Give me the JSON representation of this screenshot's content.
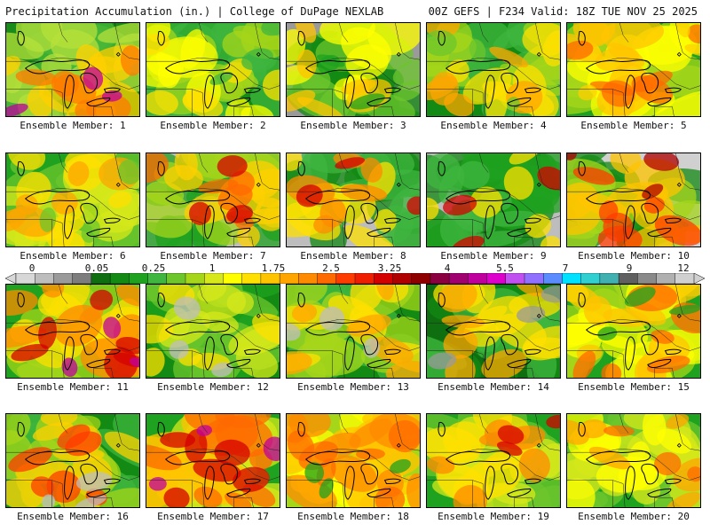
{
  "header": {
    "title": "Precipitation Accumulation (in.) | College of DuPage NEXLAB",
    "valid": "00Z GEFS | F234 Valid: 18Z TUE NOV 25 2025"
  },
  "legend": {
    "labels": [
      "0",
      "0.05",
      "0.25",
      "1",
      "1.75",
      "2.5",
      "3.25",
      "4",
      "5.5",
      "7",
      "9",
      "12"
    ],
    "colors": [
      "#d8d8d8",
      "#bdbdbd",
      "#9a9a9a",
      "#7d7d7d",
      "#0f6e0f",
      "#138a13",
      "#1fa21f",
      "#3fb63f",
      "#6cc62c",
      "#a6d61a",
      "#d6e81a",
      "#ffff00",
      "#ffe000",
      "#ffc400",
      "#ffa500",
      "#ff8a00",
      "#ff6a00",
      "#ff3c00",
      "#f01e00",
      "#d40000",
      "#b00000",
      "#8e0000",
      "#8a0040",
      "#a00070",
      "#c0009e",
      "#dd00cc",
      "#c050f0",
      "#9070ff",
      "#5a8cff",
      "#00e0ff",
      "#30d0d0",
      "#40b0b0",
      "#606060",
      "#8a8a8a",
      "#b0b0b0",
      "#d0d0d0"
    ]
  },
  "panels": [
    {
      "caption": "Ensemble Member: 1",
      "scheme": [
        "#1a8a1a",
        "#4ab83a",
        "#b6e03a",
        "#ffd000",
        "#ff7a00",
        "#c0009e"
      ]
    },
    {
      "caption": "Ensemble Member: 2",
      "scheme": [
        "#138a13",
        "#3fb63f",
        "#a6d61a",
        "#ffff00",
        "#ffe000",
        "#3fb63f"
      ]
    },
    {
      "caption": "Ensemble Member: 3",
      "scheme": [
        "#9a9a9a",
        "#138a13",
        "#6cc62c",
        "#ffff00",
        "#ffc400",
        "#1fa21f"
      ]
    },
    {
      "caption": "Ensemble Member: 4",
      "scheme": [
        "#138a13",
        "#3fb63f",
        "#a6d61a",
        "#ffe000",
        "#ffa500",
        "#6cc62c"
      ]
    },
    {
      "caption": "Ensemble Member: 5",
      "scheme": [
        "#1fa21f",
        "#a6d61a",
        "#ffff00",
        "#ffc400",
        "#ff6a00",
        "#ffd000"
      ]
    },
    {
      "caption": "Ensemble Member: 6",
      "scheme": [
        "#1fa21f",
        "#6cc62c",
        "#d6e81a",
        "#ffe000",
        "#ffa500",
        "#6cc62c"
      ]
    },
    {
      "caption": "Ensemble Member: 7",
      "scheme": [
        "#bdbdbd",
        "#1fa21f",
        "#a6d61a",
        "#ffd000",
        "#ff6a00",
        "#d40000"
      ]
    },
    {
      "caption": "Ensemble Member: 8",
      "scheme": [
        "#bdbdbd",
        "#138a13",
        "#3fb63f",
        "#ffe000",
        "#ff8a00",
        "#d40000"
      ]
    },
    {
      "caption": "Ensemble Member: 9",
      "scheme": [
        "#bdbdbd",
        "#138a13",
        "#1fa21f",
        "#3fb63f",
        "#ffe000",
        "#d40000"
      ]
    },
    {
      "caption": "Ensemble Member: 10",
      "scheme": [
        "#d0d0d0",
        "#138a13",
        "#a6d61a",
        "#ffc400",
        "#ff3c00",
        "#b00000"
      ]
    },
    {
      "caption": "Ensemble Member: 11",
      "scheme": [
        "#1fa21f",
        "#a6d61a",
        "#ffe000",
        "#ff8a00",
        "#d40000",
        "#c0009e"
      ]
    },
    {
      "caption": "Ensemble Member: 12",
      "scheme": [
        "#138a13",
        "#1fa21f",
        "#6cc62c",
        "#d6e81a",
        "#ffe000",
        "#bdbdbd"
      ]
    },
    {
      "caption": "Ensemble Member: 13",
      "scheme": [
        "#138a13",
        "#3fb63f",
        "#a6d61a",
        "#ffe000",
        "#ffa500",
        "#bdbdbd"
      ]
    },
    {
      "caption": "Ensemble Member: 14",
      "scheme": [
        "#0f6e0f",
        "#138a13",
        "#3fb63f",
        "#ffe000",
        "#ffa500",
        "#9a9a9a"
      ]
    },
    {
      "caption": "Ensemble Member: 15",
      "scheme": [
        "#1fa21f",
        "#a6d61a",
        "#ffff00",
        "#ffc400",
        "#ff6a00",
        "#1fa21f"
      ]
    },
    {
      "caption": "Ensemble Member: 16",
      "scheme": [
        "#138a13",
        "#3fb63f",
        "#a6d61a",
        "#ffd000",
        "#ff3c00",
        "#bdbdbd"
      ]
    },
    {
      "caption": "Ensemble Member: 17",
      "scheme": [
        "#1fa21f",
        "#d6e81a",
        "#ffc400",
        "#ff6a00",
        "#d40000",
        "#c0009e"
      ]
    },
    {
      "caption": "Ensemble Member: 18",
      "scheme": [
        "#a6d61a",
        "#ffff00",
        "#ffc400",
        "#ff8a00",
        "#ff6a00",
        "#1fa21f"
      ]
    },
    {
      "caption": "Ensemble Member: 19",
      "scheme": [
        "#1fa21f",
        "#6cc62c",
        "#d6e81a",
        "#ffe000",
        "#ff8a00",
        "#d40000"
      ]
    },
    {
      "caption": "Ensemble Member: 20",
      "scheme": [
        "#1fa21f",
        "#6cc62c",
        "#d6e81a",
        "#ffff00",
        "#ffa500",
        "#ff6a00"
      ]
    }
  ]
}
